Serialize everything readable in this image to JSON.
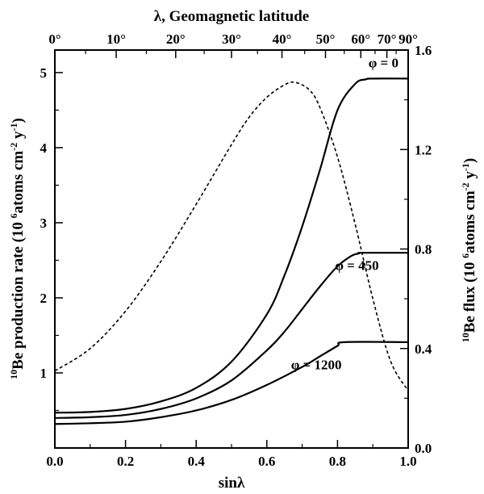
{
  "chart_data": {
    "type": "line",
    "title": "",
    "xlabel": "sinλ",
    "x_top_label": "λ, Geomagnetic latitude",
    "ylabel_left": {
      "pre": "10",
      "main": "Be production rate (10 ",
      "exp1": "6",
      "mid": "atoms cm",
      "exp2": "-2",
      "mid2": " y",
      "exp3": "-1",
      "post": ")"
    },
    "ylabel_right": {
      "pre": "10",
      "main": "Be flux (10 ",
      "exp1": "6",
      "mid": "atoms cm",
      "exp2": "-2",
      "mid2": " y",
      "exp3": "-1",
      "post": ")"
    },
    "xlim": [
      0,
      1
    ],
    "ylim_left": [
      0,
      5.3
    ],
    "ylim_right": [
      0,
      1.6
    ],
    "x_ticks": [
      {
        "v": 0.0,
        "label": "0.0"
      },
      {
        "v": 0.2,
        "label": "0.2"
      },
      {
        "v": 0.4,
        "label": "0.4"
      },
      {
        "v": 0.6,
        "label": "0.6"
      },
      {
        "v": 0.8,
        "label": "0.8"
      },
      {
        "v": 1.0,
        "label": "1.0"
      }
    ],
    "x_top_ticks": [
      {
        "v": 0.0,
        "label": "0°"
      },
      {
        "v": 0.1736,
        "label": "10°"
      },
      {
        "v": 0.342,
        "label": "20°"
      },
      {
        "v": 0.5,
        "label": "30°"
      },
      {
        "v": 0.6428,
        "label": "40°"
      },
      {
        "v": 0.766,
        "label": "50°"
      },
      {
        "v": 0.866,
        "label": "60°"
      },
      {
        "v": 0.9397,
        "label": "70°"
      },
      {
        "v": 1.0,
        "label": "90°"
      }
    ],
    "y_left_ticks": [
      {
        "v": 1,
        "label": "1"
      },
      {
        "v": 2,
        "label": "2"
      },
      {
        "v": 3,
        "label": "3"
      },
      {
        "v": 4,
        "label": "4"
      },
      {
        "v": 5,
        "label": "5"
      }
    ],
    "y_right_ticks": [
      {
        "v": 0.0,
        "label": "0.0"
      },
      {
        "v": 0.4,
        "label": "0.4"
      },
      {
        "v": 0.8,
        "label": "0.8"
      },
      {
        "v": 1.2,
        "label": "1.2"
      },
      {
        "v": 1.6,
        "label": "1.6"
      }
    ],
    "series": [
      {
        "name": "φ = 0",
        "axis": "left",
        "style": "solid",
        "x": [
          0.0,
          0.1,
          0.2,
          0.3,
          0.4,
          0.5,
          0.6,
          0.65,
          0.7,
          0.75,
          0.8,
          0.85,
          0.88,
          0.9,
          1.0
        ],
        "y": [
          0.47,
          0.48,
          0.52,
          0.62,
          0.8,
          1.15,
          1.78,
          2.3,
          2.95,
          3.7,
          4.5,
          4.85,
          4.91,
          4.92,
          4.92
        ]
      },
      {
        "name": "φ = 450",
        "axis": "left",
        "style": "solid",
        "x": [
          0.0,
          0.1,
          0.2,
          0.3,
          0.4,
          0.5,
          0.6,
          0.65,
          0.7,
          0.75,
          0.8,
          0.84,
          0.86,
          0.87,
          1.0
        ],
        "y": [
          0.4,
          0.41,
          0.44,
          0.52,
          0.66,
          0.9,
          1.3,
          1.55,
          1.85,
          2.15,
          2.42,
          2.56,
          2.59,
          2.6,
          2.6
        ]
      },
      {
        "name": "φ = 1200",
        "axis": "left",
        "style": "solid",
        "x": [
          0.0,
          0.1,
          0.2,
          0.3,
          0.4,
          0.5,
          0.6,
          0.7,
          0.75,
          0.8,
          0.82,
          1.0
        ],
        "y": [
          0.32,
          0.33,
          0.35,
          0.41,
          0.5,
          0.64,
          0.84,
          1.08,
          1.22,
          1.36,
          1.41,
          1.41
        ]
      },
      {
        "name": "",
        "axis": "right",
        "style": "dashed",
        "x": [
          0.0,
          0.1,
          0.2,
          0.3,
          0.4,
          0.5,
          0.55,
          0.6,
          0.65,
          0.68,
          0.72,
          0.75,
          0.8,
          0.85,
          0.9,
          0.95,
          1.0
        ],
        "y": [
          0.31,
          0.4,
          0.55,
          0.75,
          0.98,
          1.22,
          1.33,
          1.41,
          1.46,
          1.47,
          1.44,
          1.37,
          1.17,
          0.9,
          0.6,
          0.35,
          0.23
        ]
      }
    ],
    "annotations": [
      {
        "text": "φ = 0",
        "x": 0.93,
        "y": 5.07
      },
      {
        "text": "φ = 450",
        "x": 0.855,
        "y": 2.37
      },
      {
        "text": "φ = 1200",
        "x": 0.74,
        "y": 1.05
      }
    ]
  }
}
